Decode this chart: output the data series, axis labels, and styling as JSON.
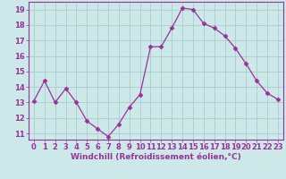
{
  "x": [
    0,
    1,
    2,
    3,
    4,
    5,
    6,
    7,
    8,
    9,
    10,
    11,
    12,
    13,
    14,
    15,
    16,
    17,
    18,
    19,
    20,
    21,
    22,
    23
  ],
  "y": [
    13.1,
    14.4,
    13.0,
    13.9,
    13.0,
    11.8,
    11.3,
    10.8,
    11.6,
    12.7,
    13.5,
    16.6,
    16.6,
    17.8,
    19.1,
    19.0,
    18.1,
    17.8,
    17.3,
    16.5,
    15.5,
    14.4,
    13.6,
    13.2
  ],
  "line_color": "#993399",
  "marker": "D",
  "marker_size": 2.5,
  "bg_color": "#cce8e8",
  "plot_bg_color": "#cce8e8",
  "grid_color": "#aacccc",
  "xlabel": "Windchill (Refroidissement éolien,°C)",
  "xlabel_color": "#993399",
  "xlabel_fontsize": 6.5,
  "tick_label_color": "#993399",
  "tick_fontsize": 6,
  "ylim": [
    10.6,
    19.5
  ],
  "yticks": [
    11,
    12,
    13,
    14,
    15,
    16,
    17,
    18,
    19
  ],
  "xlim": [
    -0.5,
    23.5
  ],
  "xticks": [
    0,
    1,
    2,
    3,
    4,
    5,
    6,
    7,
    8,
    9,
    10,
    11,
    12,
    13,
    14,
    15,
    16,
    17,
    18,
    19,
    20,
    21,
    22,
    23
  ],
  "spine_color": "#993399",
  "bottom_bar_color": "#7755aa"
}
